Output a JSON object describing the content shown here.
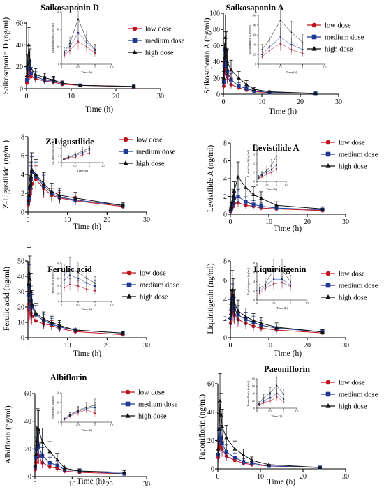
{
  "colors": {
    "low": "#c0141c",
    "medium": "#1f3a93",
    "high": "#111111",
    "axis": "#000000"
  },
  "chart_data": [
    {
      "type": "line",
      "title": "Saikosaponin D",
      "xlabel": "Time (h)",
      "ylabel": "Saikosaponin D (ng/ml)",
      "xlim": [
        0,
        30
      ],
      "ylim": [
        0,
        60
      ],
      "xticks": [
        0,
        10,
        20,
        30
      ],
      "yticks": [
        0,
        20,
        40,
        60
      ],
      "legend_placement": "right",
      "x": [
        0.083,
        0.25,
        0.5,
        0.75,
        1,
        2,
        4,
        6,
        8,
        12,
        24
      ],
      "series": [
        {
          "name": "low dose",
          "values": [
            5,
            10,
            16,
            13,
            11,
            9,
            7,
            6,
            4,
            3,
            1.5
          ]
        },
        {
          "name": "medium dose",
          "values": [
            8,
            18,
            24,
            18,
            14,
            11,
            8,
            7,
            5,
            3,
            2
          ]
        },
        {
          "name": "high dose",
          "values": [
            12,
            22,
            40,
            26,
            18,
            13,
            10,
            8,
            5,
            3,
            2
          ]
        }
      ],
      "inset": {
        "xlabel": "Time (h)",
        "ylabel": "Saikosaponin D (ng/ml)",
        "xlim": [
          0,
          1.5
        ],
        "ylim": [
          0,
          60
        ],
        "xticks": [
          0,
          0.5,
          1,
          1.5
        ],
        "yticks": [
          0,
          20,
          40,
          60
        ],
        "x": [
          0.083,
          0.25,
          0.5,
          0.75,
          1
        ],
        "series": [
          {
            "name": "low dose",
            "values": [
              10,
              16,
              26,
              20,
              13
            ]
          },
          {
            "name": "medium dose",
            "values": [
              12,
              20,
              36,
              25,
              16
            ]
          },
          {
            "name": "high dose",
            "values": [
              14,
              24,
              52,
              28,
              17
            ]
          }
        ]
      }
    },
    {
      "type": "line",
      "title": "Saikosaponin A",
      "xlabel": "Time (h)",
      "ylabel": "Saikosaponin A (ng/ml)",
      "xlim": [
        0,
        30
      ],
      "ylim": [
        0,
        100
      ],
      "xticks": [
        0,
        10,
        20,
        30
      ],
      "yticks": [
        0,
        20,
        40,
        60,
        80,
        100
      ],
      "legend_placement": "right",
      "x": [
        0.083,
        0.25,
        0.5,
        0.75,
        1,
        2,
        4,
        6,
        8,
        12,
        24
      ],
      "series": [
        {
          "name": "low dose",
          "values": [
            10,
            25,
            40,
            30,
            22,
            12,
            8,
            5,
            3,
            2,
            1
          ]
        },
        {
          "name": "medium dose",
          "values": [
            15,
            35,
            55,
            40,
            28,
            18,
            10,
            7,
            4,
            2,
            1
          ]
        },
        {
          "name": "high dose",
          "values": [
            20,
            45,
            70,
            55,
            40,
            30,
            20,
            12,
            6,
            3,
            1
          ]
        }
      ],
      "inset": {
        "xlabel": "Time (h)",
        "ylabel": "Saikosaponin A (ng/ml)",
        "xlim": [
          0,
          1.5
        ],
        "ylim": [
          0,
          100
        ],
        "xticks": [
          0,
          0.5,
          1,
          1.5
        ],
        "yticks": [
          0,
          20,
          40,
          60,
          80,
          100
        ],
        "x": [
          0.083,
          0.25,
          0.5,
          0.75,
          1
        ],
        "series": [
          {
            "name": "low dose",
            "values": [
              15,
              28,
              42,
              30,
              22
            ]
          },
          {
            "name": "medium dose",
            "values": [
              20,
              35,
              55,
              40,
              30
            ]
          },
          {
            "name": "high dose",
            "values": [
              30,
              50,
              90,
              65,
              45
            ]
          }
        ]
      }
    },
    {
      "type": "line",
      "title": "Z-Ligustilide",
      "xlabel": "Time (h)",
      "ylabel": "Z-Ligustilide (ng/ml)",
      "xlim": [
        0,
        30
      ],
      "ylim": [
        0,
        8
      ],
      "xticks": [
        0,
        10,
        20,
        30
      ],
      "yticks": [
        0,
        2,
        4,
        6,
        8
      ],
      "legend_placement": "right",
      "x": [
        0.083,
        0.25,
        0.5,
        0.75,
        1,
        2,
        4,
        6,
        8,
        12,
        24
      ],
      "series": [
        {
          "name": "low dose",
          "values": [
            0.8,
            1.2,
            1.8,
            2.5,
            3.0,
            3.5,
            2.5,
            1.8,
            1.5,
            1.2,
            0.6
          ]
        },
        {
          "name": "medium dose",
          "values": [
            1.0,
            1.5,
            2.5,
            3.5,
            4.2,
            3.8,
            2.8,
            2.0,
            1.6,
            1.3,
            0.7
          ]
        },
        {
          "name": "high dose",
          "values": [
            1.2,
            1.8,
            2.8,
            3.8,
            4.5,
            4.0,
            3.0,
            2.2,
            1.8,
            1.5,
            0.7
          ]
        }
      ],
      "inset": {
        "xlabel": "Time (h)",
        "ylabel": "Z-Ligustilide (ng/ml)",
        "xlim": [
          0,
          1.5
        ],
        "ylim": [
          0,
          6
        ],
        "xticks": [
          0,
          0.5,
          1,
          1.5
        ],
        "yticks": [
          0,
          2,
          4,
          6
        ],
        "x": [
          0.083,
          0.25,
          0.5,
          0.75,
          1
        ],
        "series": [
          {
            "name": "low dose",
            "values": [
              0.8,
              1.2,
              1.6,
              2.2,
              2.8
            ]
          },
          {
            "name": "medium dose",
            "values": [
              0.9,
              1.4,
              2.0,
              2.8,
              3.5
            ]
          },
          {
            "name": "high dose",
            "values": [
              1.0,
              1.6,
              2.4,
              3.2,
              4.2
            ]
          }
        ]
      }
    },
    {
      "type": "line",
      "title": "Levistilide A",
      "xlabel": "Time (h)",
      "ylabel": "Levistilide A (ng/ml)",
      "xlim": [
        0,
        30
      ],
      "ylim": [
        0,
        8
      ],
      "xticks": [
        0,
        10,
        20,
        30
      ],
      "yticks": [
        0,
        2,
        4,
        6,
        8
      ],
      "legend_placement": "right",
      "x": [
        0.083,
        0.25,
        0.5,
        0.75,
        1,
        2,
        4,
        6,
        8,
        12,
        24
      ],
      "series": [
        {
          "name": "low dose",
          "values": [
            0.3,
            0.5,
            0.8,
            1.0,
            1.2,
            1.3,
            1.0,
            0.9,
            0.7,
            0.6,
            0.4
          ]
        },
        {
          "name": "medium dose",
          "values": [
            0.4,
            0.7,
            1.0,
            1.4,
            1.8,
            2.0,
            1.4,
            1.1,
            0.9,
            0.7,
            0.5
          ]
        },
        {
          "name": "high dose",
          "values": [
            0.5,
            0.9,
            1.4,
            2.0,
            2.6,
            4.2,
            3.0,
            2.2,
            1.8,
            1.0,
            0.6
          ]
        }
      ],
      "inset": {
        "xlabel": "Time (h)",
        "ylabel": "Levistilide A (ng/ml)",
        "xlim": [
          0,
          1.5
        ],
        "ylim": [
          0,
          4
        ],
        "xticks": [
          0,
          0.5,
          1,
          1.5
        ],
        "yticks": [
          0,
          1,
          2,
          3,
          4
        ],
        "x": [
          0.083,
          0.25,
          0.5,
          0.75,
          1
        ],
        "series": [
          {
            "name": "low dose",
            "values": [
              0.3,
              0.5,
              0.8,
              1.0,
              1.4
            ]
          },
          {
            "name": "medium dose",
            "values": [
              0.4,
              0.7,
              1.0,
              1.3,
              1.8
            ]
          },
          {
            "name": "high dose",
            "values": [
              0.5,
              0.8,
              1.2,
              1.8,
              2.8
            ]
          }
        ]
      }
    },
    {
      "type": "line",
      "title": "Ferulic acid",
      "xlabel": "Time (h)",
      "ylabel": "Ferulic acid (ng/ml)",
      "xlim": [
        0,
        30
      ],
      "ylim": [
        0,
        50
      ],
      "xticks": [
        0,
        10,
        20,
        30
      ],
      "yticks": [
        0,
        10,
        20,
        30,
        40,
        50
      ],
      "legend_placement": "right",
      "x": [
        0.083,
        0.25,
        0.5,
        0.75,
        1,
        2,
        4,
        6,
        8,
        12,
        24
      ],
      "series": [
        {
          "name": "low dose",
          "values": [
            18,
            22,
            20,
            16,
            14,
            11,
            9,
            8,
            6,
            4,
            2
          ]
        },
        {
          "name": "medium dose",
          "values": [
            28,
            34,
            30,
            24,
            20,
            15,
            11,
            9,
            7,
            5,
            3
          ]
        },
        {
          "name": "high dose",
          "values": [
            35,
            42,
            38,
            30,
            22,
            16,
            12,
            10,
            8,
            5,
            3
          ]
        }
      ],
      "inset": {
        "xlabel": "Time (h)",
        "ylabel": "Ferulic acid (ng/ml)",
        "xlim": [
          0,
          1.5
        ],
        "ylim": [
          0,
          50
        ],
        "xticks": [
          0,
          0.5,
          1,
          1.5
        ],
        "yticks": [
          0,
          10,
          20,
          30,
          40,
          50
        ],
        "x": [
          0.083,
          0.25,
          0.5,
          0.75,
          1
        ],
        "series": [
          {
            "name": "low dose",
            "values": [
              18,
              22,
              20,
              16,
              14
            ]
          },
          {
            "name": "medium dose",
            "values": [
              28,
              34,
              30,
              24,
              20
            ]
          },
          {
            "name": "high dose",
            "values": [
              35,
              42,
              38,
              30,
              24
            ]
          }
        ]
      }
    },
    {
      "type": "line",
      "title": "Liquiritigenin",
      "xlabel": "Time (h)",
      "ylabel": "Liquiritigenin (ng/ml)",
      "xlim": [
        0,
        30
      ],
      "ylim": [
        0,
        8
      ],
      "xticks": [
        0,
        10,
        20,
        30
      ],
      "yticks": [
        0,
        2,
        4,
        6,
        8
      ],
      "legend_placement": "right",
      "x": [
        0.083,
        0.25,
        0.5,
        0.75,
        1,
        2,
        4,
        6,
        8,
        12,
        24
      ],
      "series": [
        {
          "name": "low dose",
          "values": [
            1.5,
            2.5,
            3.2,
            2.8,
            2.4,
            1.9,
            1.5,
            1.2,
            1.0,
            0.8,
            0.5
          ]
        },
        {
          "name": "medium dose",
          "values": [
            2.0,
            3.0,
            4.0,
            3.5,
            3.0,
            2.4,
            1.9,
            1.6,
            1.3,
            1.0,
            0.6
          ]
        },
        {
          "name": "high dose",
          "values": [
            2.5,
            3.6,
            5.0,
            4.4,
            3.6,
            2.8,
            2.2,
            1.8,
            1.5,
            1.1,
            0.6
          ]
        }
      ],
      "inset": {
        "xlabel": "Time (h)",
        "ylabel": "Liquiritigenin (ng/ml)",
        "xlim": [
          0,
          1.5
        ],
        "ylim": [
          0,
          8
        ],
        "xticks": [
          0,
          0.5,
          1,
          1.5
        ],
        "yticks": [
          0,
          2,
          4,
          6,
          8
        ],
        "x": [
          0.083,
          0.25,
          0.5,
          0.75,
          1
        ],
        "series": [
          {
            "name": "low dose",
            "values": [
              1.5,
              2.5,
              3.5,
              3.8,
              2.9
            ]
          },
          {
            "name": "medium dose",
            "values": [
              2.0,
              3.0,
              4.5,
              4.5,
              3.2
            ]
          },
          {
            "name": "high dose",
            "values": [
              2.5,
              3.5,
              6.5,
              6.5,
              4.0
            ]
          }
        ]
      }
    },
    {
      "type": "line",
      "title": "Albiflorin",
      "xlabel": "Time (h)",
      "ylabel": "Albiflorin (ng/ml)",
      "xlim": [
        0,
        30
      ],
      "ylim": [
        0,
        60
      ],
      "xticks": [
        0,
        10,
        20,
        30
      ],
      "yticks": [
        0,
        20,
        40,
        60
      ],
      "legend_placement": "right",
      "x": [
        0.083,
        0.25,
        0.5,
        0.75,
        1,
        2,
        4,
        6,
        8,
        12,
        24
      ],
      "series": [
        {
          "name": "low dose",
          "values": [
            5,
            10,
            14,
            16,
            15,
            10,
            7,
            6,
            4,
            3,
            2
          ]
        },
        {
          "name": "medium dose",
          "values": [
            7,
            14,
            20,
            24,
            22,
            15,
            10,
            8,
            5,
            4,
            2
          ]
        },
        {
          "name": "high dose",
          "values": [
            8,
            16,
            26,
            35,
            34,
            25,
            18,
            12,
            6,
            4,
            3
          ]
        }
      ],
      "inset": {
        "xlabel": "Time (h)",
        "ylabel": "Albiflorin (ng/ml)",
        "xlim": [
          0,
          1.5
        ],
        "ylim": [
          0,
          60
        ],
        "xticks": [
          0,
          0.5,
          1,
          1.5
        ],
        "yticks": [
          0,
          20,
          40,
          60
        ],
        "x": [
          0.083,
          0.25,
          0.5,
          0.75,
          1
        ],
        "series": [
          {
            "name": "low dose",
            "values": [
              5,
              12,
              20,
              25,
              18
            ]
          },
          {
            "name": "medium dose",
            "values": [
              6,
              14,
              22,
              28,
              30
            ]
          },
          {
            "name": "high dose",
            "values": [
              7,
              15,
              24,
              30,
              35
            ]
          }
        ]
      }
    },
    {
      "type": "line",
      "title": "Paeoniflorin",
      "xlabel": "Time (h)",
      "ylabel": "Paeoniflorin (ng/ml)",
      "xlim": [
        0,
        30
      ],
      "ylim": [
        0,
        60
      ],
      "xticks": [
        0,
        10,
        20,
        30
      ],
      "yticks": [
        0,
        20,
        40,
        60
      ],
      "legend_placement": "right",
      "x": [
        0.083,
        0.25,
        0.5,
        0.75,
        1,
        2,
        4,
        6,
        8,
        12,
        24
      ],
      "series": [
        {
          "name": "low dose",
          "values": [
            8,
            15,
            20,
            17,
            14,
            9,
            6,
            4,
            3,
            2,
            1
          ]
        },
        {
          "name": "medium dose",
          "values": [
            10,
            20,
            28,
            22,
            18,
            12,
            8,
            5,
            4,
            2,
            1
          ]
        },
        {
          "name": "high dose",
          "values": [
            14,
            28,
            48,
            38,
            30,
            22,
            14,
            10,
            6,
            3,
            1
          ]
        }
      ],
      "inset": {
        "xlabel": "Time (h)",
        "ylabel": "Paeoniflorin (ng/ml)",
        "xlim": [
          0,
          1.5
        ],
        "ylim": [
          0,
          80
        ],
        "xticks": [
          0,
          0.5,
          1,
          1.5
        ],
        "yticks": [
          0,
          20,
          40,
          60,
          80
        ],
        "x": [
          0.083,
          0.25,
          0.5,
          0.75,
          1
        ],
        "series": [
          {
            "name": "low dose",
            "values": [
              8,
              15,
              20,
              30,
              18
            ]
          },
          {
            "name": "medium dose",
            "values": [
              10,
              20,
              28,
              40,
              25
            ]
          },
          {
            "name": "high dose",
            "values": [
              14,
              28,
              42,
              62,
              38
            ]
          }
        ]
      }
    }
  ]
}
